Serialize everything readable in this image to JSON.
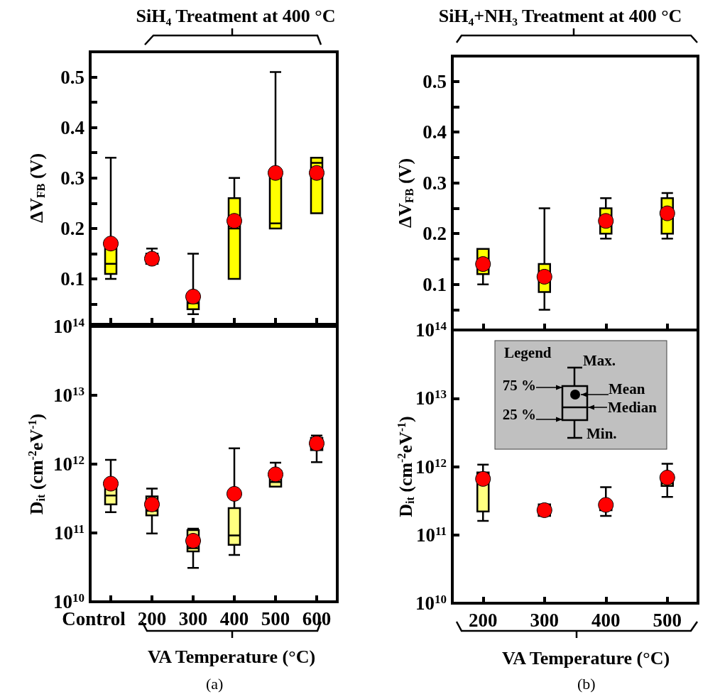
{
  "chart_data": [
    {
      "type": "box",
      "title": "SiH₄ Treatment at 400 °C",
      "ylabel": "ΔV$_{FB}$ (V)",
      "categories": [
        "Control",
        "200",
        "300",
        "400",
        "500",
        "600"
      ],
      "tick_labels": "y",
      "marker": "circle",
      "ylim": [
        0.01,
        0.55
      ],
      "yticks": [
        {
          "value": 0.05,
          "label": null
        },
        0.1,
        {
          "value": 0.15,
          "label": null
        },
        0.2,
        {
          "value": 0.25,
          "label": null
        },
        0.3,
        {
          "value": 0.35,
          "label": null
        },
        0.4,
        {
          "value": 0.45,
          "label": null
        },
        0.5
      ],
      "series": [
        {
          "type": "box",
          "color": "#ffff00",
          "boxes": [
            {
              "low": 0.1,
              "q1": 0.11,
              "median": 0.13,
              "q3": 0.16,
              "high": 0.34
            },
            {
              "low": 0.13,
              "q1": 0.13,
              "median": 0.14,
              "q3": 0.15,
              "high": 0.16
            },
            {
              "low": 0.03,
              "q1": 0.04,
              "median": 0.052,
              "q3": 0.06,
              "high": 0.15
            },
            {
              "low": 0.1,
              "q1": 0.1,
              "median": 0.2,
              "q3": 0.26,
              "high": 0.3
            },
            {
              "low": 0.2,
              "q1": 0.2,
              "median": 0.21,
              "q3": 0.31,
              "high": 0.51
            },
            {
              "low": 0.23,
              "q1": 0.23,
              "median": 0.33,
              "q3": 0.34,
              "high": 0.34
            }
          ]
        },
        {
          "type": "scatter",
          "color": "#ff0000",
          "x": [
            "Control",
            "200",
            "300",
            "400",
            "500",
            "600"
          ],
          "values": [
            0.17,
            0.14,
            0.065,
            0.215,
            0.31,
            0.31
          ]
        }
      ]
    },
    {
      "type": "box",
      "xlabel": "VA Temperature (°C)",
      "ylabel": "D$_{it}$ (cm$^{-2}$eV$^{-1}$)",
      "categories": [
        "Control",
        "200",
        "300",
        "400",
        "500",
        "600"
      ],
      "log": true,
      "marker": "circle",
      "annotations": [
        "(a)"
      ],
      "ylim": [
        10000000000.0,
        100000000000000.0
      ],
      "yticks": [
        {
          "value": 10000000000.0,
          "label": "10$^{10}$"
        },
        {
          "value": 100000000000.0,
          "label": "10$^{11}$"
        },
        {
          "value": 1000000000000.0,
          "label": "10$^{12}$"
        },
        {
          "value": 10000000000000.0,
          "label": "10$^{13}$"
        },
        {
          "value": 100000000000000.0,
          "label": "10$^{14}$"
        }
      ],
      "series": [
        {
          "type": "box",
          "color": "#ffff80",
          "boxes": [
            {
              "low": 200000000000.0,
              "q1": 260000000000.0,
              "median": 350000000000.0,
              "q3": 450000000000.0,
              "high": 1150000000000.0
            },
            {
              "low": 98000000000.0,
              "q1": 180000000000.0,
              "median": 210000000000.0,
              "q3": 340000000000.0,
              "high": 440000000000.0
            },
            {
              "low": 31000000000.0,
              "q1": 54000000000.0,
              "median": 60000000000.0,
              "q3": 110000000000.0,
              "high": 115000000000.0
            },
            {
              "low": 48000000000.0,
              "q1": 67000000000.0,
              "median": 92000000000.0,
              "q3": 230000000000.0,
              "high": 1700000000000.0
            },
            {
              "low": 470000000000.0,
              "q1": 470000000000.0,
              "median": 550000000000.0,
              "q3": 800000000000.0,
              "high": 1050000000000.0
            },
            {
              "low": 1070000000000.0,
              "q1": 1600000000000.0,
              "median": 2000000000000.0,
              "q3": 2400000000000.0,
              "high": 2600000000000.0
            }
          ]
        },
        {
          "type": "scatter",
          "color": "#ff0000",
          "x": [
            "Control",
            "200",
            "300",
            "400",
            "500",
            "600"
          ],
          "values": [
            520000000000.0,
            260000000000.0,
            77000000000.0,
            370000000000.0,
            710000000000.0,
            2000000000000.0
          ]
        }
      ]
    },
    {
      "type": "box",
      "title": "SiH₄+NH₃ Treatment at 400 °C",
      "ylabel": "ΔV$_{FB}$ (V)",
      "categories": [
        "200",
        "300",
        "400",
        "500"
      ],
      "tick_labels": "y",
      "marker": "circle",
      "ylim": [
        0.01,
        0.55
      ],
      "yticks": [
        {
          "value": 0.05,
          "label": null
        },
        0.1,
        {
          "value": 0.15,
          "label": null
        },
        0.2,
        {
          "value": 0.25,
          "label": null
        },
        0.3,
        {
          "value": 0.35,
          "label": null
        },
        0.4,
        {
          "value": 0.45,
          "label": null
        },
        0.5
      ],
      "series": [
        {
          "type": "box",
          "color": "#ffff00",
          "boxes": [
            {
              "low": 0.1,
              "q1": 0.12,
              "median": 0.14,
              "q3": 0.17,
              "high": 0.17
            },
            {
              "low": 0.05,
              "q1": 0.085,
              "median": 0.115,
              "q3": 0.14,
              "high": 0.25
            },
            {
              "low": 0.19,
              "q1": 0.2,
              "median": 0.22,
              "q3": 0.25,
              "high": 0.27
            },
            {
              "low": 0.19,
              "q1": 0.2,
              "median": 0.24,
              "q3": 0.27,
              "high": 0.28
            }
          ]
        },
        {
          "type": "scatter",
          "color": "#ff0000",
          "x": [
            "200",
            "300",
            "400",
            "500"
          ],
          "values": [
            0.14,
            0.115,
            0.225,
            0.24
          ]
        }
      ]
    },
    {
      "type": "box",
      "xlabel": "VA Temperature (°C)",
      "ylabel": "D$_{it}$ (cm$^{-2}$eV$^{-1}$)",
      "categories": [
        "200",
        "300",
        "400",
        "500"
      ],
      "log": true,
      "marker": "circle",
      "annotations": [
        "(b)",
        "Legend",
        "Max.",
        "75 %",
        "Mean",
        "Median",
        "25 %",
        "Min."
      ],
      "ylim": [
        10000000000.0,
        100000000000000.0
      ],
      "yticks": [
        {
          "value": 10000000000.0,
          "label": "10$^{10}$"
        },
        {
          "value": 100000000000.0,
          "label": "10$^{11}$"
        },
        {
          "value": 1000000000000.0,
          "label": "10$^{12}$"
        },
        {
          "value": 10000000000000.0,
          "label": "10$^{13}$"
        },
        {
          "value": 100000000000000.0,
          "label": "10$^{14}$"
        }
      ],
      "series": [
        {
          "type": "box",
          "color": "#ffff80",
          "boxes": [
            {
              "low": 160000000000.0,
              "q1": 220000000000.0,
              "median": 600000000000.0,
              "q3": 820000000000.0,
              "high": 1070000000000.0
            },
            {
              "low": 190000000000.0,
              "q1": 190000000000.0,
              "median": 230000000000.0,
              "q3": 280000000000.0,
              "high": 280000000000.0
            },
            {
              "low": 190000000000.0,
              "q1": 230000000000.0,
              "median": 260000000000.0,
              "q3": 300000000000.0,
              "high": 500000000000.0
            },
            {
              "low": 360000000000.0,
              "q1": 520000000000.0,
              "median": 570000000000.0,
              "q3": 760000000000.0,
              "high": 1100000000000.0
            }
          ]
        },
        {
          "type": "scatter",
          "color": "#ff0000",
          "x": [
            "200",
            "300",
            "400",
            "500"
          ],
          "values": [
            660000000000.0,
            230000000000.0,
            275000000000.0,
            690000000000.0
          ]
        }
      ]
    }
  ]
}
